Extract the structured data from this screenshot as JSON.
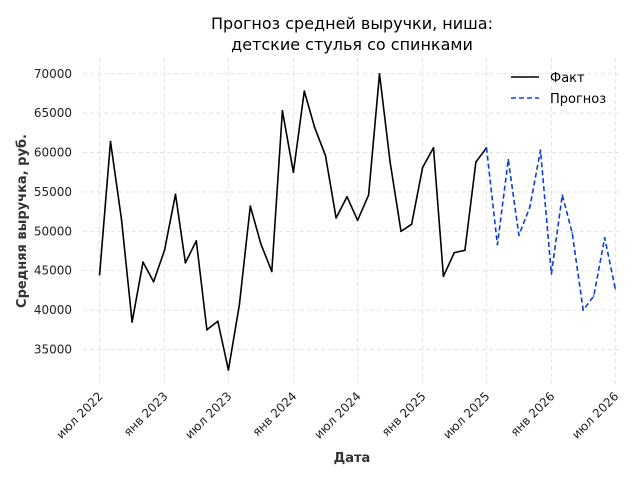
{
  "chart_data": {
    "type": "line",
    "title_lines": [
      "Прогноз средней выручки, ниша:",
      "детские стулья со спинками"
    ],
    "xlabel": "Дата",
    "ylabel": "Средняя выручка, руб.",
    "ylim": [
      30500,
      72000
    ],
    "xlim": [
      "2022-05-15",
      "2026-07-20"
    ],
    "y_ticks": [
      35000,
      40000,
      45000,
      50000,
      55000,
      60000,
      65000,
      70000
    ],
    "x_ticks": [
      {
        "date": "2022-07-01",
        "label": "июл 2022"
      },
      {
        "date": "2023-01-01",
        "label": "янв 2023"
      },
      {
        "date": "2023-07-01",
        "label": "июл 2023"
      },
      {
        "date": "2024-01-01",
        "label": "янв 2024"
      },
      {
        "date": "2024-07-01",
        "label": "июл 2024"
      },
      {
        "date": "2025-01-01",
        "label": "янв 2025"
      },
      {
        "date": "2025-07-01",
        "label": "июл 2025"
      },
      {
        "date": "2026-01-01",
        "label": "янв 2026"
      },
      {
        "date": "2026-07-01",
        "label": "июл 2026"
      }
    ],
    "grid": true,
    "legend_position": "top-right",
    "series": [
      {
        "name": "Факт",
        "color": "#000000",
        "style": "solid",
        "points": [
          [
            "2022-07-01",
            44500
          ],
          [
            "2022-08-01",
            61400
          ],
          [
            "2022-09-01",
            51500
          ],
          [
            "2022-10-01",
            38500
          ],
          [
            "2022-11-01",
            46100
          ],
          [
            "2022-12-01",
            43600
          ],
          [
            "2023-01-01",
            47600
          ],
          [
            "2023-02-01",
            54700
          ],
          [
            "2023-03-01",
            46000
          ],
          [
            "2023-04-01",
            48800
          ],
          [
            "2023-05-01",
            37500
          ],
          [
            "2023-06-01",
            38600
          ],
          [
            "2023-07-01",
            32400
          ],
          [
            "2023-08-01",
            40700
          ],
          [
            "2023-09-01",
            53200
          ],
          [
            "2023-10-01",
            48400
          ],
          [
            "2023-11-01",
            44900
          ],
          [
            "2023-12-01",
            65300
          ],
          [
            "2024-01-01",
            57500
          ],
          [
            "2024-02-01",
            67800
          ],
          [
            "2024-03-01",
            63200
          ],
          [
            "2024-04-01",
            59600
          ],
          [
            "2024-05-01",
            51700
          ],
          [
            "2024-06-01",
            54400
          ],
          [
            "2024-07-01",
            51400
          ],
          [
            "2024-08-01",
            54600
          ],
          [
            "2024-09-01",
            70000
          ],
          [
            "2024-10-01",
            58800
          ],
          [
            "2024-11-01",
            50000
          ],
          [
            "2024-12-01",
            50900
          ],
          [
            "2025-01-01",
            58100
          ],
          [
            "2025-02-01",
            60600
          ],
          [
            "2025-03-01",
            44300
          ],
          [
            "2025-04-01",
            47300
          ],
          [
            "2025-05-01",
            47600
          ],
          [
            "2025-06-01",
            58800
          ],
          [
            "2025-07-01",
            60600
          ]
        ]
      },
      {
        "name": "Прогноз",
        "color": "#0a3fd4",
        "style": "dashed",
        "points": [
          [
            "2025-07-01",
            60600
          ],
          [
            "2025-08-01",
            48300
          ],
          [
            "2025-09-01",
            59100
          ],
          [
            "2025-10-01",
            49500
          ],
          [
            "2025-11-01",
            53100
          ],
          [
            "2025-12-01",
            60300
          ],
          [
            "2026-01-01",
            44600
          ],
          [
            "2026-02-01",
            54600
          ],
          [
            "2026-03-01",
            49800
          ],
          [
            "2026-04-01",
            40000
          ],
          [
            "2026-05-01",
            41800
          ],
          [
            "2026-06-01",
            49200
          ],
          [
            "2026-07-01",
            42700
          ]
        ]
      }
    ]
  }
}
